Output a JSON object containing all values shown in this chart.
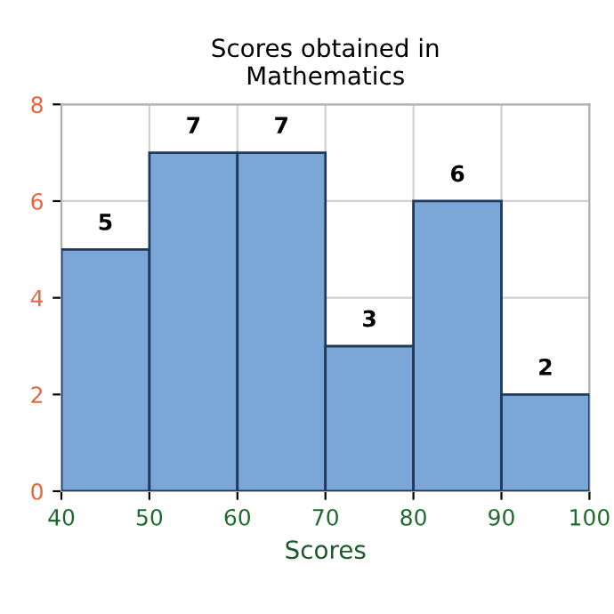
{
  "chart_data": {
    "type": "histogram",
    "title": "Scores obtained in\nMathematics",
    "xlabel": "Scores",
    "bins": [
      40,
      50,
      60,
      70,
      80,
      90,
      100
    ],
    "values": [
      5,
      7,
      7,
      3,
      6,
      2
    ],
    "color": "#7ba7d8",
    "xlim": [
      40,
      100
    ],
    "xticks": [
      40,
      50,
      60,
      70,
      80,
      90,
      100
    ],
    "ylim": [
      0,
      8
    ],
    "yticks": [
      0,
      2,
      4,
      6,
      8
    ],
    "grid": true,
    "data_labels": true
  }
}
